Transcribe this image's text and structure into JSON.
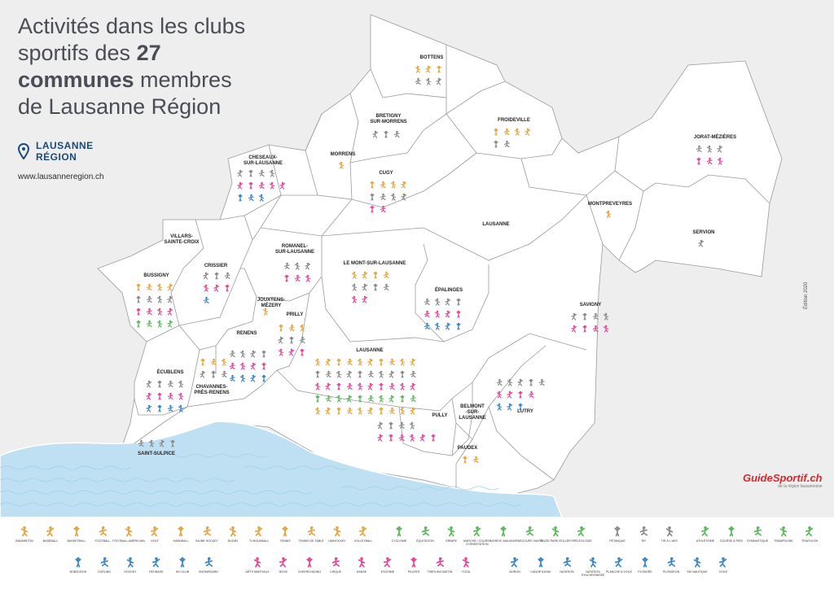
{
  "title": {
    "part1": "Activités dans les clubs sportifs des ",
    "bold1": "27",
    "part2": " ",
    "bold2": "communes",
    "part3": " membres de Lausanne Région"
  },
  "logo": {
    "line1": "LAUSANNE",
    "line2": "RÉGION",
    "icon": "map-pin-icon"
  },
  "website": "www.lausanneregion.ch",
  "edition": "Édition 2020",
  "brand": {
    "name": "GuideSportif.ch",
    "tagline": "de la région lausannoise"
  },
  "colors": {
    "team_sports": "#e8a33c",
    "racket": "#8a8a8a",
    "combat": "#e8459a",
    "water": "#3a86c8",
    "outdoor": "#5cb85c",
    "map_fill": "#ffffff",
    "lake": "#bfe0f2",
    "background": "#eeeeef"
  },
  "communes": [
    {
      "name": "BOTTENS",
      "counts": [
        3,
        3
      ]
    },
    {
      "name": "BRETIGNY\nSUR-MORRENS",
      "counts": [
        3
      ]
    },
    {
      "name": "FROIDEVILLE",
      "counts": [
        4,
        2
      ]
    },
    {
      "name": "JORAT-MÉZIÈRES",
      "counts": [
        3,
        3
      ]
    },
    {
      "name": "MORRENS",
      "counts": [
        1
      ]
    },
    {
      "name": "CHESEAUX-\nSUR-LAUSANNE",
      "counts": [
        4,
        5,
        3
      ]
    },
    {
      "name": "CUGY",
      "counts": [
        4,
        4,
        2
      ]
    },
    {
      "name": "LAUSANNE",
      "counts": []
    },
    {
      "name": "MONTPREVEYRES",
      "counts": [
        1
      ]
    },
    {
      "name": "SERVION",
      "counts": [
        1
      ]
    },
    {
      "name": "VILLARS-\nSAINTE-CROIX",
      "counts": []
    },
    {
      "name": "ROMANEL-\nSUR-LAUSANNE",
      "counts": [
        3,
        3
      ]
    },
    {
      "name": "LE MONT-SUR-LAUSANNE",
      "counts": [
        4,
        4,
        2
      ]
    },
    {
      "name": "CRISSIER",
      "counts": [
        3,
        3,
        1
      ]
    },
    {
      "name": "BUSSIGNY",
      "counts": [
        4,
        4,
        4,
        4
      ]
    },
    {
      "name": "ÉPALINGES",
      "counts": [
        4,
        4,
        4
      ]
    },
    {
      "name": "JOUXTENS-\nMÉZERY",
      "counts": [
        1
      ]
    },
    {
      "name": "SAVIGNY",
      "counts": [
        4,
        4
      ]
    },
    {
      "name": "PRILLY",
      "counts": [
        3,
        3,
        3
      ]
    },
    {
      "name": "RENENS",
      "counts": [
        4,
        4,
        4
      ]
    },
    {
      "name": "LAUSANNE",
      "counts": [
        10,
        10,
        10,
        10,
        10
      ]
    },
    {
      "name": "ÉCUBLENS",
      "counts": [
        4,
        4,
        4
      ]
    },
    {
      "name": "CHAVANNES-\nPRÈS-RENENS",
      "counts": [
        3,
        3
      ]
    },
    {
      "name": "LUTRY",
      "counts": [
        5,
        4,
        3
      ]
    },
    {
      "name": "BELMONT\n-SUR-\nLAUSANNE",
      "counts": []
    },
    {
      "name": "PULLY",
      "counts": [
        4,
        6
      ]
    },
    {
      "name": "PAUDEX",
      "counts": [
        2
      ]
    },
    {
      "name": "SAINT-SULPICE",
      "counts": [
        4
      ]
    }
  ],
  "legend": [
    {
      "label": "BADMINTON",
      "cat": "team"
    },
    {
      "label": "BASEBALL",
      "cat": "team"
    },
    {
      "label": "BASKETBALL",
      "cat": "team"
    },
    {
      "label": "FOOTBALL",
      "cat": "team"
    },
    {
      "label": "FOOTBALL AMÉRICAIN",
      "cat": "team"
    },
    {
      "label": "GOLF",
      "cat": "team"
    },
    {
      "label": "HANDBALL",
      "cat": "team"
    },
    {
      "label": "INLINE HOCKEY",
      "cat": "team"
    },
    {
      "label": "RUGBY",
      "cat": "team"
    },
    {
      "label": "TCHOUKBALL",
      "cat": "team"
    },
    {
      "label": "TENNIS",
      "cat": "team"
    },
    {
      "label": "TENNIS DE TABLE",
      "cat": "team"
    },
    {
      "label": "UNIHOCKEY",
      "cat": "team"
    },
    {
      "label": "VOLLEYBALL",
      "cat": "team"
    },
    {
      "label": "CYCLISME",
      "cat": "outdoor"
    },
    {
      "label": "ÉQUITATION",
      "cat": "outdoor"
    },
    {
      "label": "GRIMPE",
      "cat": "outdoor"
    },
    {
      "label": "MARCHE / COURSE D'ORIENTATION",
      "cat": "outdoor"
    },
    {
      "label": "NORDIC WALKING",
      "cat": "outdoor"
    },
    {
      "label": "PARCOURS SANTÉ",
      "cat": "outdoor"
    },
    {
      "label": "SKATE PARK ROLLER",
      "cat": "outdoor"
    },
    {
      "label": "SPÉLÉOLOGIE",
      "cat": "outdoor"
    },
    {
      "label": "PÉTANQUE",
      "cat": "racket"
    },
    {
      "label": "TIR",
      "cat": "racket"
    },
    {
      "label": "TIR À L'ARC",
      "cat": "racket"
    },
    {
      "label": "ATHLÉTISME",
      "cat": "outdoor"
    },
    {
      "label": "COURSE À PIED",
      "cat": "outdoor"
    },
    {
      "label": "GYMNASTIQUE",
      "cat": "outdoor"
    },
    {
      "label": "TRAMPOLINE",
      "cat": "outdoor"
    },
    {
      "label": "TRIATHLON",
      "cat": "outdoor"
    },
    {
      "label": "BOBSLEIGH",
      "cat": "water"
    },
    {
      "label": "CURLING",
      "cat": "water"
    },
    {
      "label": "HOCKEY",
      "cat": "water"
    },
    {
      "label": "PATINAGE",
      "cat": "water"
    },
    {
      "label": "SKI CLUB",
      "cat": "water"
    },
    {
      "label": "SNOWBOARD",
      "cat": "water"
    },
    {
      "label": "ARTS MARTIAUX",
      "cat": "combat"
    },
    {
      "label": "BOXE",
      "cat": "combat"
    },
    {
      "label": "CHEERLEADING",
      "cat": "combat"
    },
    {
      "label": "CIRQUE",
      "cat": "combat"
    },
    {
      "label": "DANSE",
      "cat": "combat"
    },
    {
      "label": "ESCRIME",
      "cat": "combat"
    },
    {
      "label": "PILATES",
      "cat": "combat"
    },
    {
      "label": "TWIRLING BATON",
      "cat": "combat"
    },
    {
      "label": "YOGA",
      "cat": "combat"
    },
    {
      "label": "AVIRON",
      "cat": "water"
    },
    {
      "label": "CANOË KAYAK",
      "cat": "water"
    },
    {
      "label": "NATATION",
      "cat": "water"
    },
    {
      "label": "NATATION SYNCHRONISÉE",
      "cat": "water"
    },
    {
      "label": "PLANCHE À VOILE",
      "cat": "water"
    },
    {
      "label": "PLONGÉE",
      "cat": "water"
    },
    {
      "label": "PLONGEON",
      "cat": "water"
    },
    {
      "label": "SKI NAUTIQUE",
      "cat": "water"
    },
    {
      "label": "VOILE",
      "cat": "water"
    }
  ]
}
